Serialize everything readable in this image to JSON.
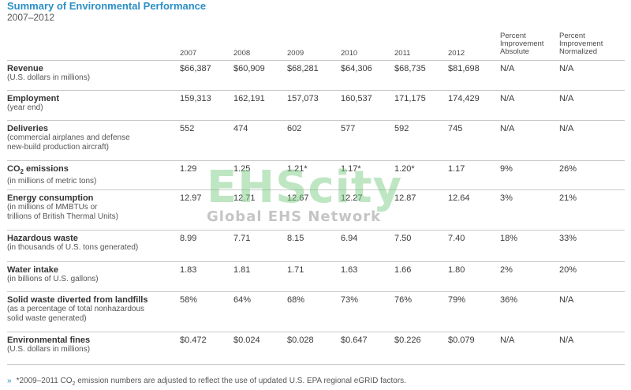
{
  "title": "Summary of Environmental Performance",
  "subtitle": "2007–2012",
  "columns": [
    "2007",
    "2008",
    "2009",
    "2010",
    "2011",
    "2012"
  ],
  "col_abs": [
    "Percent",
    "Improvement",
    "Absolute"
  ],
  "col_norm": [
    "Percent",
    "Improvement",
    "Normalized"
  ],
  "rows": [
    {
      "label": "Revenue",
      "sub": [
        "(U.S. dollars in millions)"
      ],
      "values": [
        "$66,387",
        "$60,909",
        "$68,281",
        "$64,306",
        "$68,735",
        "$81,698",
        "N/A",
        "N/A"
      ]
    },
    {
      "label": "Employment",
      "sub": [
        "(year end)"
      ],
      "values": [
        "159,313",
        "162,191",
        "157,073",
        "160,537",
        "171,175",
        "174,429",
        "N/A",
        "N/A"
      ]
    },
    {
      "label": "Deliveries",
      "sub": [
        "(commercial airplanes and defense",
        "new-build production aircraft)"
      ],
      "values": [
        "552",
        "474",
        "602",
        "577",
        "592",
        "745",
        "N/A",
        "N/A"
      ]
    },
    {
      "label": "CO",
      "label_sub": "2",
      "label_tail": " emissions",
      "sub": [
        "(in millions of metric tons)"
      ],
      "values": [
        "1.29",
        "1.25",
        "1.21*",
        "1.17*",
        "1.20*",
        "1.17",
        "9%",
        "26%"
      ]
    },
    {
      "label": "Energy consumption",
      "sub": [
        "(in millions of MMBTUs or",
        "trillions of British Thermal Units)"
      ],
      "values": [
        "12.97",
        "12.71",
        "12.67",
        "12.27",
        "12.87",
        "12.64",
        "3%",
        "21%"
      ]
    },
    {
      "label": "Hazardous waste",
      "sub": [
        "(in thousands of U.S. tons generated)"
      ],
      "values": [
        "8.99",
        "7.71",
        "8.15",
        "6.94",
        "7.50",
        "7.40",
        "18%",
        "33%"
      ]
    },
    {
      "label": "Water intake",
      "sub": [
        "(in billions of U.S. gallons)"
      ],
      "values": [
        "1.83",
        "1.81",
        "1.71",
        "1.63",
        "1.66",
        "1.80",
        "2%",
        "20%"
      ]
    },
    {
      "label": "Solid waste diverted from landfills",
      "sub": [
        "(as a percentage of total nonhazardous",
        "solid waste generated)"
      ],
      "values": [
        "58%",
        "64%",
        "68%",
        "73%",
        "76%",
        "79%",
        "36%",
        "N/A"
      ]
    },
    {
      "label": "Environmental fines",
      "sub": [
        "(U.S. dollars in millions)"
      ],
      "values": [
        "$0.472",
        "$0.024",
        "$0.028",
        "$0.647",
        "$0.226",
        "$0.079",
        "N/A",
        "N/A"
      ]
    }
  ],
  "watermark": {
    "main": "EHScity",
    "tagline": "Global EHS Network"
  },
  "footnote": {
    "arrow": "»",
    "pre": "*2009–2011 CO",
    "sub": "2",
    "post": " emission numbers are adjusted to reflect the use of updated U.S. EPA regional eGRID factors."
  }
}
